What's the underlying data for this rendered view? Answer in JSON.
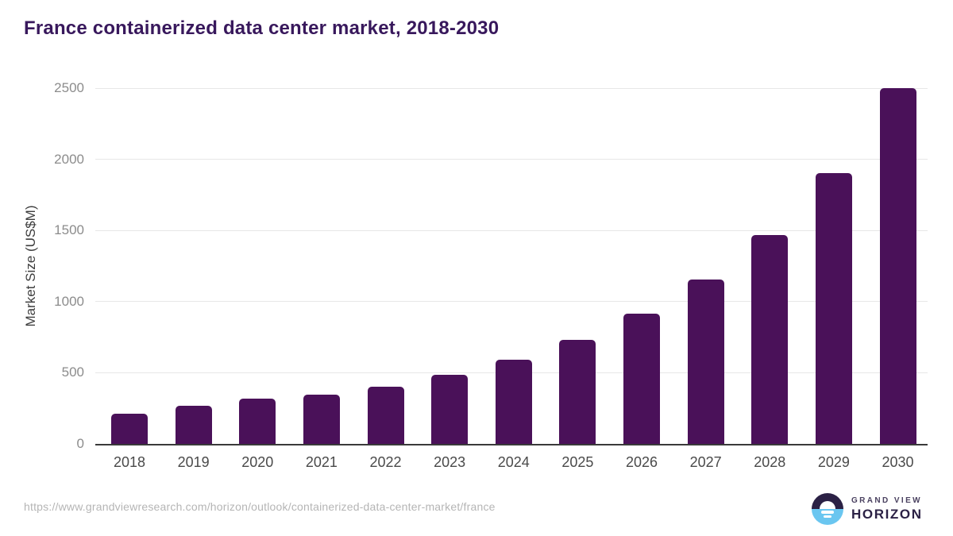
{
  "header": {
    "title": "France containerized data center market, 2018-2030"
  },
  "chart_data": {
    "type": "bar",
    "title": "France containerized data center market, 2018-2030",
    "categories": [
      "2018",
      "2019",
      "2020",
      "2021",
      "2022",
      "2023",
      "2024",
      "2025",
      "2026",
      "2027",
      "2028",
      "2029",
      "2030"
    ],
    "values": [
      210,
      270,
      320,
      345,
      400,
      485,
      590,
      730,
      915,
      1155,
      1470,
      1905,
      2500
    ],
    "xlabel": "",
    "ylabel": "Market Size (US$M)",
    "ylim": [
      0,
      2500
    ],
    "yticks": [
      0,
      500,
      1000,
      1500,
      2000,
      2500
    ],
    "grid": "horizontal",
    "legend": "none",
    "bar_color": "#4A1159"
  },
  "footer": {
    "source_url": "https://www.grandviewresearch.com/horizon/outlook/containerized-data-center-market/france",
    "logo": {
      "line1": "GRAND VIEW",
      "line2": "HORIZON"
    }
  },
  "colors": {
    "bar": "#4A1159",
    "title": "#38185C",
    "axis": "#3A3A3A",
    "grid": "#E7E7E7",
    "ytick": "#8C8C8C",
    "xtick": "#4A4A4A",
    "axis_title": "#3D3D3D",
    "url": "#B5B5B5",
    "logo_dark": "#2B2145",
    "logo_blue": "#6AC6F0",
    "logo_text_light": "#4A4160"
  }
}
